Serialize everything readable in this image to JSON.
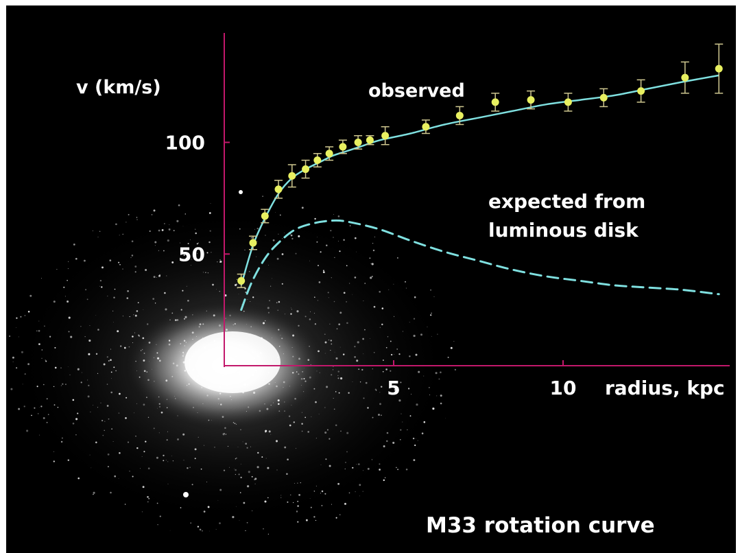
{
  "chart_data": {
    "type": "line",
    "title": "M33 rotation curve",
    "xlabel": "radius, kpc",
    "ylabel": "v (km/s)",
    "xlim": [
      0,
      15
    ],
    "ylim": [
      0,
      155
    ],
    "xticks": [
      5,
      10
    ],
    "yticks": [
      50,
      100
    ],
    "grid": false,
    "colors": {
      "background": "#000000",
      "axes": "#c2186b",
      "points": "#e8f060",
      "curve": "#7fe0e0"
    },
    "series": [
      {
        "name": "observed",
        "kind": "points_with_errorbars",
        "x": [
          0.5,
          0.85,
          1.2,
          1.6,
          2.0,
          2.4,
          2.75,
          3.1,
          3.5,
          3.95,
          4.3,
          4.75,
          5.95,
          6.95,
          8.0,
          9.05,
          10.15,
          11.2,
          12.3,
          13.6,
          14.6
        ],
        "y": [
          38,
          55,
          67,
          79,
          85,
          88,
          92,
          95,
          98,
          100,
          101,
          103,
          107,
          112,
          118,
          119,
          118,
          120,
          123,
          129,
          133
        ],
        "err": [
          3,
          3,
          3,
          4,
          5,
          4,
          3,
          3,
          3,
          3,
          2,
          4,
          3,
          4,
          4,
          4,
          4,
          4,
          5,
          7,
          11
        ]
      },
      {
        "name": "expected from luminous disk",
        "kind": "dashed_curve",
        "x": [
          0.5,
          0.8,
          1.2,
          1.6,
          2.1,
          2.7,
          3.3,
          3.8,
          4.6,
          5.5,
          6.5,
          7.5,
          8.5,
          9.5,
          10.5,
          11.5,
          12.5,
          13.5,
          14.6
        ],
        "y": [
          25,
          37,
          48,
          55,
          61,
          64,
          65,
          64,
          61,
          56,
          51,
          47,
          43,
          40,
          38,
          36,
          35,
          34,
          32
        ]
      }
    ],
    "fit_curve": {
      "x": [
        0.5,
        0.85,
        1.2,
        1.6,
        2.0,
        2.4,
        2.8,
        3.2,
        3.6,
        4.0,
        4.6,
        5.5,
        6.5,
        7.5,
        8.5,
        9.5,
        10.5,
        11.5,
        12.5,
        13.5,
        14.6
      ],
      "y": [
        36,
        54,
        66,
        77,
        84,
        88,
        91,
        94,
        96,
        98,
        101,
        104,
        108,
        111,
        114,
        117,
        119,
        121,
        124,
        127,
        130
      ]
    }
  }
}
